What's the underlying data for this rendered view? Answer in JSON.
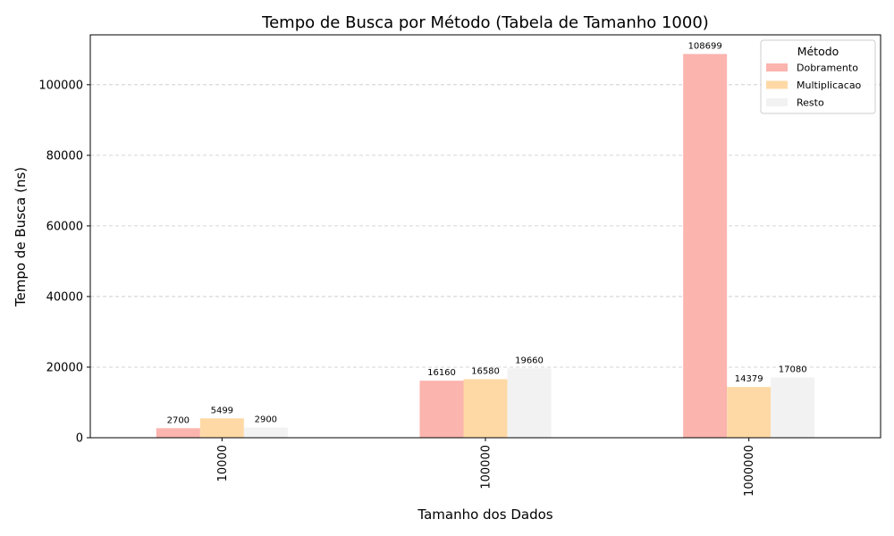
{
  "chart_data": {
    "type": "bar",
    "title": "Tempo de Busca por Método (Tabela de Tamanho 1000)",
    "xlabel": "Tamanho dos Dados",
    "ylabel": "Tempo de Busca (ns)",
    "categories": [
      "10000",
      "100000",
      "1000000"
    ],
    "series": [
      {
        "name": "Dobramento",
        "values": [
          2700,
          16160,
          108699
        ],
        "color": "#fbb4ae"
      },
      {
        "name": "Multiplicacao",
        "values": [
          5499,
          16580,
          14379
        ],
        "color": "#fed9a6"
      },
      {
        "name": "Resto",
        "values": [
          2900,
          19660,
          17080
        ],
        "color": "#f2f2f2"
      }
    ],
    "ylim": [
      0,
      114128
    ],
    "yticks": [
      0,
      20000,
      40000,
      60000,
      80000,
      100000
    ],
    "grid": "y-dashed",
    "legend": {
      "title": "Método",
      "position": "top-right"
    },
    "x_tick_rotation": "vertical"
  }
}
